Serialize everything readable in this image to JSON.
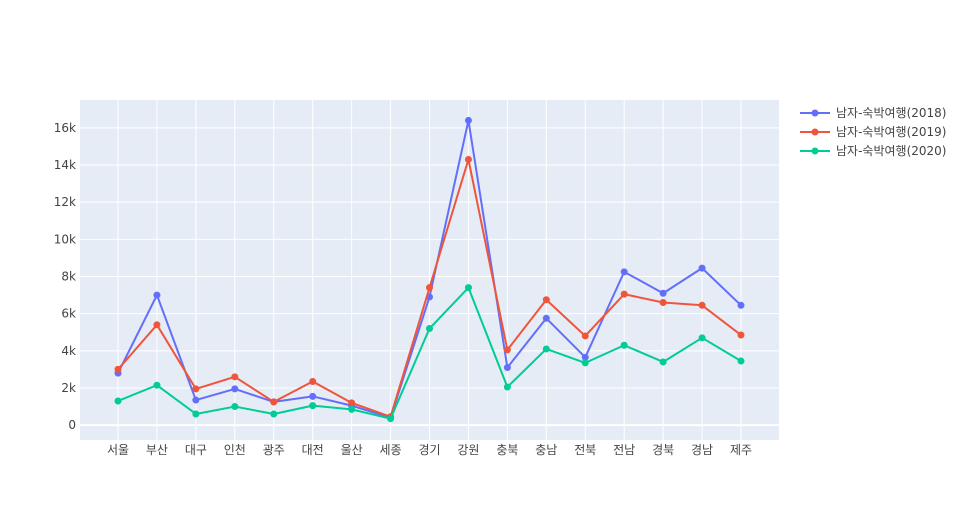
{
  "chart_data": {
    "type": "line",
    "title": "",
    "xlabel": "",
    "ylabel": "",
    "categories": [
      "서울",
      "부산",
      "대구",
      "인천",
      "광주",
      "대전",
      "울산",
      "세종",
      "경기",
      "강원",
      "충북",
      "충남",
      "전북",
      "전남",
      "경북",
      "경남",
      "제주"
    ],
    "ylim": [
      -800,
      17500
    ],
    "y_ticks": [
      0,
      2000,
      4000,
      6000,
      8000,
      10000,
      12000,
      14000,
      16000
    ],
    "y_tick_labels": [
      "0",
      "2k",
      "4k",
      "6k",
      "8k",
      "10k",
      "12k",
      "14k",
      "16k"
    ],
    "grid": true,
    "legend_position": "top-right",
    "series": [
      {
        "name": "남자-숙박여행(2018)",
        "color": "#636efa",
        "values": [
          2800,
          7000,
          1350,
          1950,
          1250,
          1550,
          1050,
          400,
          6900,
          16400,
          3100,
          5750,
          3650,
          8250,
          7100,
          8450,
          6450
        ]
      },
      {
        "name": "남자-숙박여행(2019)",
        "color": "#ef553b",
        "values": [
          3000,
          5400,
          1950,
          2600,
          1250,
          2350,
          1200,
          450,
          7400,
          14300,
          4050,
          6750,
          4800,
          7050,
          6600,
          6450,
          4850
        ]
      },
      {
        "name": "남자-숙박여행(2020)",
        "color": "#00cc96",
        "values": [
          1300,
          2150,
          600,
          1000,
          600,
          1050,
          850,
          350,
          5200,
          7400,
          2050,
          4100,
          3350,
          4300,
          3400,
          4700,
          3450
        ]
      }
    ]
  },
  "colors": {
    "plot_background": "#e5ecf6",
    "gridline": "#ffffff",
    "text": "#444444"
  }
}
